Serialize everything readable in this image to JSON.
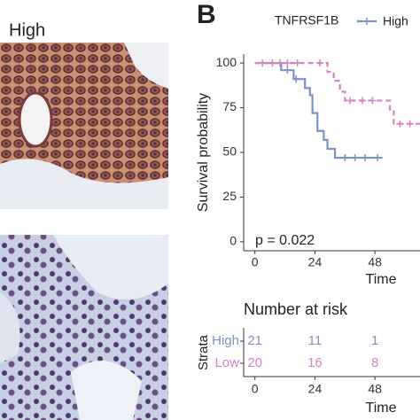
{
  "panel_a": {
    "label": "High"
  },
  "chart_data": {
    "type": "step",
    "panel_label": "B",
    "legend_title": "TNFRSF1B",
    "xlabel": "Time",
    "ylabel": "Survival probability",
    "annotation": "p = 0.022",
    "xlim": [
      -4.5,
      66
    ],
    "ylim": [
      -5,
      105
    ],
    "xticks": [
      0,
      24,
      48
    ],
    "yticks": [
      0,
      25,
      50,
      75,
      100
    ],
    "series": [
      {
        "name": "High",
        "color": "#7b93c4",
        "dashed": false,
        "x": [
          0,
          10.5,
          15.5,
          20,
          22,
          23,
          25,
          27.5,
          29,
          32,
          51
        ],
        "values": [
          100,
          96,
          91,
          86,
          82,
          72,
          62,
          57,
          52,
          47,
          47
        ],
        "censor_x": [
          13,
          16.5,
          36,
          40,
          44,
          49
        ]
      },
      {
        "name": "Low",
        "color": "#d783c0",
        "dashed": true,
        "x": [
          0,
          29,
          31.5,
          34,
          36,
          54,
          55.5,
          66
        ],
        "values": [
          100,
          95,
          90,
          84,
          79,
          73,
          66,
          66
        ],
        "censor_x": [
          3,
          7,
          10,
          13,
          17,
          26,
          38,
          43,
          47,
          58,
          62
        ]
      }
    ]
  },
  "risk_table": {
    "title": "Number at risk",
    "ylabel": "Strata",
    "xlabel": "Time",
    "times": [
      0,
      24,
      48
    ],
    "rows": [
      [
        21,
        11,
        1
      ],
      [
        20,
        16,
        8
      ]
    ]
  }
}
